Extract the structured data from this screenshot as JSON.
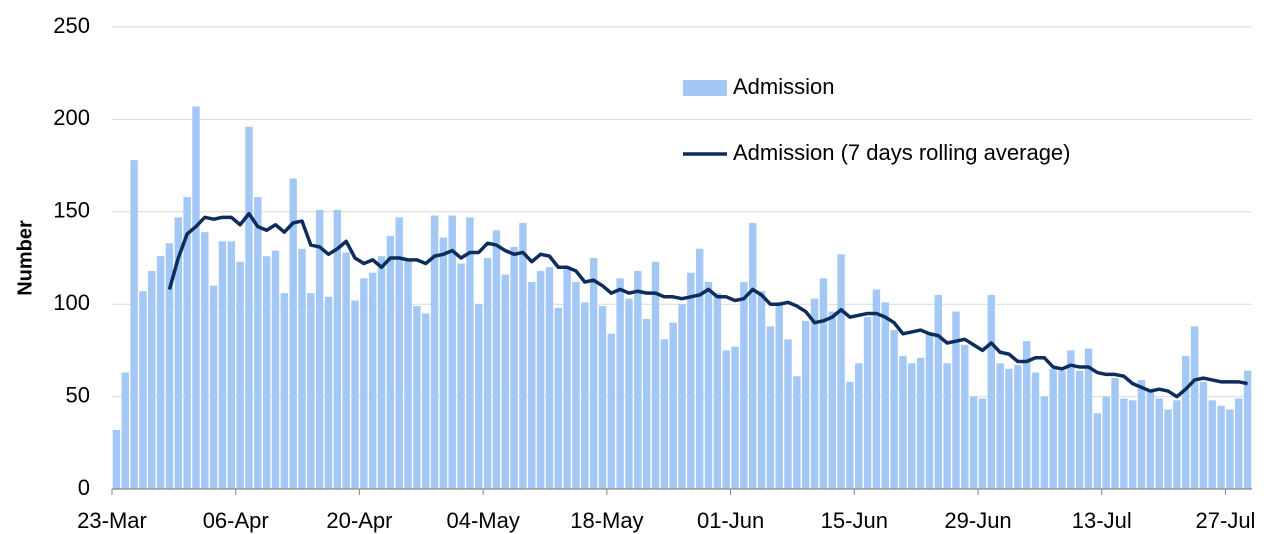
{
  "chart_data": {
    "type": "bar_line",
    "y_label": "Number",
    "categories": [
      "23-Mar",
      null,
      null,
      null,
      null,
      null,
      null,
      null,
      null,
      null,
      null,
      null,
      null,
      null,
      "06-Apr",
      null,
      null,
      null,
      null,
      null,
      null,
      null,
      null,
      null,
      null,
      null,
      null,
      null,
      "20-Apr",
      null,
      null,
      null,
      null,
      null,
      null,
      null,
      null,
      null,
      null,
      null,
      null,
      null,
      "04-May",
      null,
      null,
      null,
      null,
      null,
      null,
      null,
      null,
      null,
      null,
      null,
      null,
      null,
      "18-May",
      null,
      null,
      null,
      null,
      null,
      null,
      null,
      null,
      null,
      null,
      null,
      null,
      null,
      "01-Jun",
      null,
      null,
      null,
      null,
      null,
      null,
      null,
      null,
      null,
      null,
      null,
      null,
      null,
      "15-Jun",
      null,
      null,
      null,
      null,
      null,
      null,
      null,
      null,
      null,
      null,
      null,
      null,
      null,
      "29-Jun",
      null,
      null,
      null,
      null,
      null,
      null,
      null,
      null,
      null,
      null,
      null,
      null,
      null,
      "13-Jul",
      null,
      null,
      null,
      null,
      null,
      null,
      null,
      null,
      null,
      null,
      null,
      null,
      null,
      "27-Jul",
      null,
      null
    ],
    "series": [
      {
        "name": "Admission",
        "type": "bar",
        "color": "#a4c8f6",
        "values": [
          32,
          63,
          178,
          107,
          118,
          126,
          133,
          147,
          158,
          207,
          139,
          110,
          134,
          134,
          123,
          196,
          158,
          126,
          129,
          106,
          168,
          130,
          106,
          151,
          104,
          151,
          128,
          102,
          114,
          117,
          126,
          137,
          147,
          124,
          99,
          95,
          148,
          136,
          148,
          122,
          147,
          100,
          125,
          140,
          116,
          131,
          144,
          112,
          118,
          120,
          98,
          119,
          112,
          101,
          125,
          99,
          84,
          114,
          103,
          118,
          92,
          123,
          81,
          90,
          100,
          117,
          130,
          112,
          106,
          75,
          77,
          112,
          144,
          107,
          88,
          101,
          81,
          61,
          91,
          103,
          114,
          96,
          127,
          58,
          68,
          93,
          108,
          101,
          86,
          72,
          68,
          71,
          84,
          105,
          68,
          96,
          78,
          50,
          49,
          105,
          68,
          65,
          67,
          80,
          63,
          50,
          65,
          64,
          75,
          64,
          76,
          41,
          50,
          60,
          49,
          48,
          59,
          53,
          49,
          43,
          48,
          72,
          88,
          58,
          48,
          45,
          43,
          49,
          64
        ]
      },
      {
        "name": "Admission (7 days rolling average)",
        "type": "line",
        "color": "#0e2d5c",
        "values": [
          null,
          null,
          null,
          null,
          null,
          null,
          108,
          125,
          138,
          142,
          147,
          146,
          147,
          147,
          143,
          149,
          142,
          140,
          143,
          139,
          144,
          145,
          132,
          131,
          127,
          130,
          134,
          125,
          122,
          124,
          120,
          125,
          125,
          124,
          124,
          122,
          126,
          127,
          129,
          125,
          128,
          128,
          133,
          132,
          129,
          127,
          128,
          123,
          127,
          126,
          120,
          120,
          118,
          112,
          113,
          110,
          106,
          108,
          106,
          107,
          106,
          106,
          104,
          104,
          103,
          104,
          105,
          108,
          104,
          104,
          102,
          103,
          108,
          105,
          100,
          100,
          101,
          99,
          96,
          90,
          91,
          93,
          97,
          93,
          94,
          95,
          95,
          93,
          90,
          84,
          85,
          86,
          84,
          83,
          79,
          80,
          81,
          78,
          75,
          79,
          74,
          73,
          69,
          69,
          71,
          71,
          66,
          65,
          67,
          66,
          66,
          63,
          62,
          62,
          61,
          57,
          55,
          53,
          54,
          53,
          50,
          54,
          59,
          60,
          59,
          58,
          58,
          58,
          57
        ]
      }
    ],
    "ylim": [
      0,
      250
    ],
    "yticks": [
      0,
      50,
      100,
      150,
      200,
      250
    ],
    "grid": true,
    "legend": "upper right"
  }
}
